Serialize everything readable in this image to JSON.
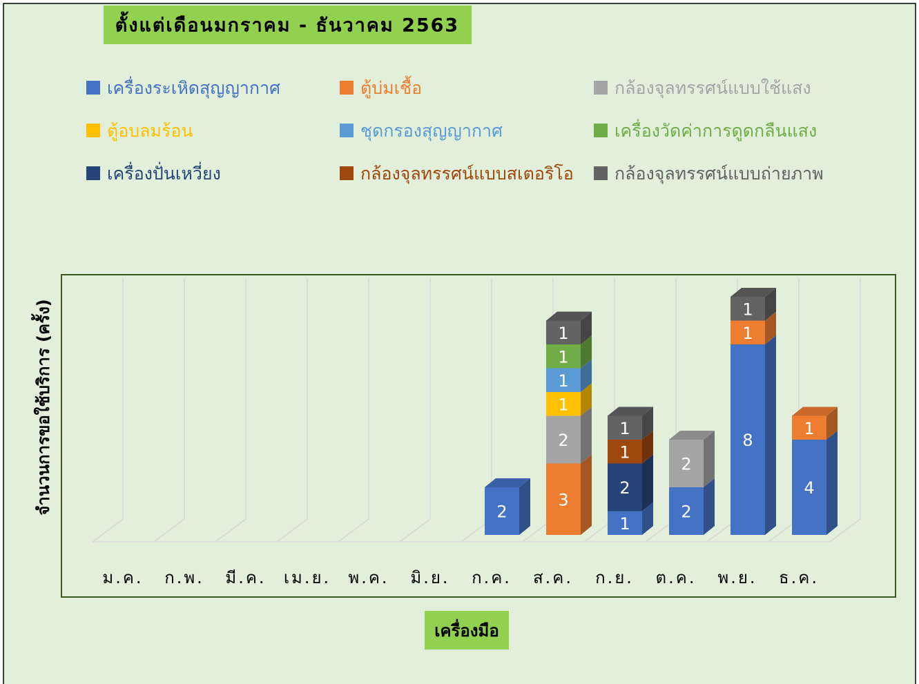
{
  "chart_data": {
    "type": "bar3d_stacked",
    "title": "ตั้งแต่เดือนมกราคม - ธันวาคม 2563",
    "y_label": "จำนวนการขอใช้บริการ (ครั้ง)",
    "x_label": "เครื่องมือ",
    "categories": [
      "ม.ค.",
      "ก.พ.",
      "มี.ค.",
      "เม.ย.",
      "พ.ค.",
      "มิ.ย.",
      "ก.ค.",
      "ส.ค.",
      "ก.ย.",
      "ต.ค.",
      "พ.ย.",
      "ธ.ค."
    ],
    "series": [
      {
        "name": "เครื่องระเหิดสุญญากาศ",
        "color": "#4472c4",
        "values": [
          null,
          null,
          null,
          null,
          null,
          null,
          2,
          null,
          1,
          2,
          8,
          4
        ]
      },
      {
        "name": "ตู้บ่มเชื้อ",
        "color": "#ed7d31",
        "values": [
          null,
          null,
          null,
          null,
          null,
          null,
          null,
          3,
          null,
          null,
          1,
          1
        ]
      },
      {
        "name": "กล้องจุลทรรศน์แบบใช้แสง",
        "color": "#a5a5a5",
        "values": [
          null,
          null,
          null,
          null,
          null,
          null,
          null,
          2,
          null,
          2,
          null,
          null
        ]
      },
      {
        "name": "ตู้อบลมร้อน",
        "color": "#ffc000",
        "values": [
          null,
          null,
          null,
          null,
          null,
          null,
          null,
          1,
          null,
          null,
          null,
          null
        ]
      },
      {
        "name": "ชุดกรองสุญญากาศ",
        "color": "#5b9bd5",
        "values": [
          null,
          null,
          null,
          null,
          null,
          null,
          null,
          1,
          null,
          null,
          null,
          null
        ]
      },
      {
        "name": "เครื่องวัดค่าการดูดกลืนแสง",
        "color": "#70ad47",
        "values": [
          null,
          null,
          null,
          null,
          null,
          null,
          null,
          1,
          null,
          null,
          null,
          null
        ]
      },
      {
        "name": "เครื่องปั่นเหวี่ยง",
        "color": "#264478",
        "values": [
          null,
          null,
          null,
          null,
          null,
          null,
          null,
          null,
          2,
          null,
          null,
          null
        ]
      },
      {
        "name": "กล้องจุลทรรศน์แบบสเตอริโอ",
        "color": "#9e480e",
        "values": [
          null,
          null,
          null,
          null,
          null,
          null,
          null,
          null,
          1,
          null,
          null,
          null
        ]
      },
      {
        "name": "กล้องจุลทรรศน์แบบถ่ายภาพ",
        "color": "#636363",
        "values": [
          null,
          null,
          null,
          null,
          null,
          null,
          null,
          1,
          1,
          null,
          1,
          null
        ]
      }
    ]
  }
}
